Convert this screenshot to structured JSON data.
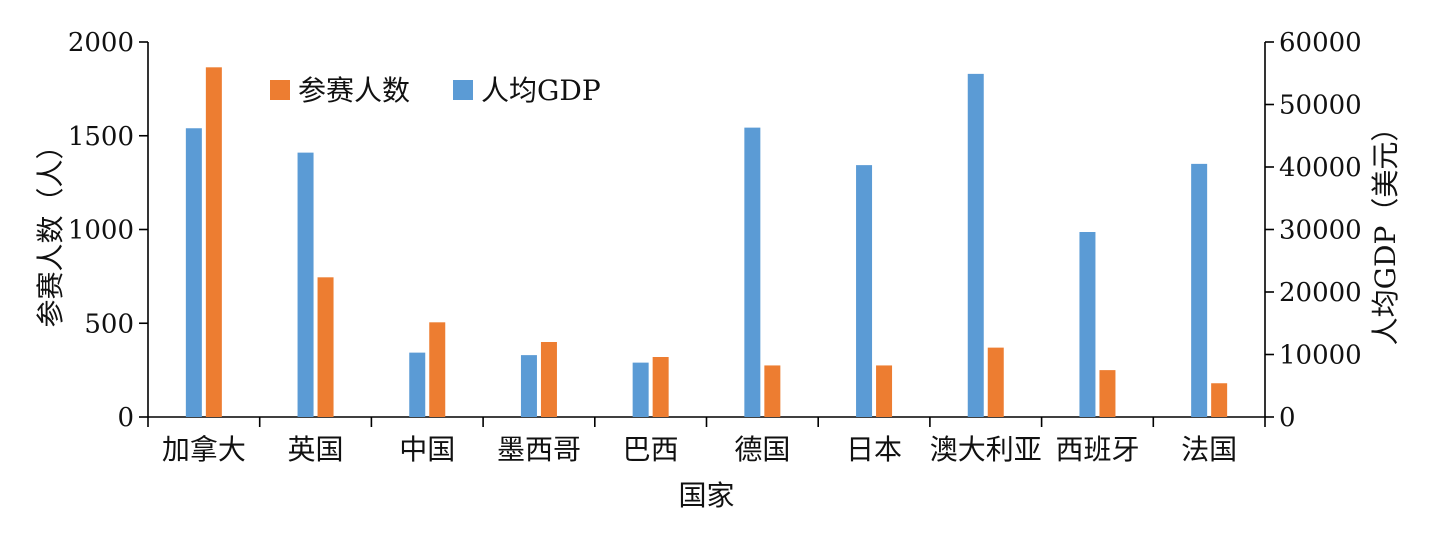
{
  "chart_data": {
    "type": "bar",
    "categories": [
      "加拿大",
      "英国",
      "中国",
      "墨西哥",
      "巴西",
      "德国",
      "日本",
      "澳大利亚",
      "西班牙",
      "法国"
    ],
    "series": [
      {
        "name": "人均GDP",
        "axis": "right",
        "color": "#5b9bd5",
        "values": [
          46200,
          42300,
          10300,
          9900,
          8700,
          46300,
          40300,
          54900,
          29600,
          40500
        ]
      },
      {
        "name": "参赛人数",
        "axis": "left",
        "color": "#ed7d31",
        "values": [
          1865,
          745,
          505,
          400,
          320,
          275,
          275,
          370,
          250,
          180
        ]
      }
    ],
    "legend_order": [
      "参赛人数",
      "人均GDP"
    ],
    "legend_position": "top-left",
    "xlabel": "国家",
    "ylabel_left": "参赛人数（人）",
    "ylabel_right": "人均GDP（美元）",
    "ylim_left": [
      0,
      2000
    ],
    "ylim_right": [
      0,
      60000
    ],
    "yticks_left": [
      0,
      500,
      1000,
      1500,
      2000
    ],
    "yticks_right": [
      0,
      10000,
      20000,
      30000,
      40000,
      50000,
      60000
    ],
    "grid": false
  }
}
